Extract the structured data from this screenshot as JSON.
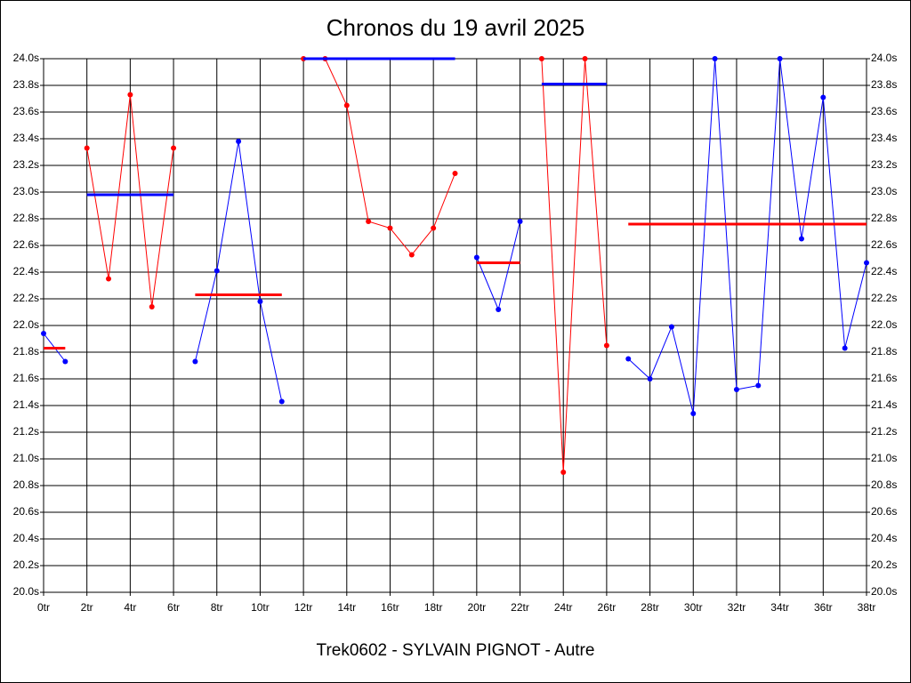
{
  "chart_data": {
    "type": "segmented-line",
    "title": "Chronos du 19 avril 2025",
    "x_label": "Trek0602 - SYLVAIN PIGNOT - Autre",
    "xlim": [
      0,
      38
    ],
    "ylim": [
      20.0,
      24.0
    ],
    "grid": true,
    "xticks": [
      {
        "value": 0,
        "label": "0tr"
      },
      {
        "value": 2,
        "label": "2tr"
      },
      {
        "value": 4,
        "label": "4tr"
      },
      {
        "value": 6,
        "label": "6tr"
      },
      {
        "value": 8,
        "label": "8tr"
      },
      {
        "value": 10,
        "label": "10tr"
      },
      {
        "value": 12,
        "label": "12tr"
      },
      {
        "value": 14,
        "label": "14tr"
      },
      {
        "value": 16,
        "label": "16tr"
      },
      {
        "value": 18,
        "label": "18tr"
      },
      {
        "value": 20,
        "label": "20tr"
      },
      {
        "value": 22,
        "label": "22tr"
      },
      {
        "value": 24,
        "label": "24tr"
      },
      {
        "value": 26,
        "label": "26tr"
      },
      {
        "value": 28,
        "label": "28tr"
      },
      {
        "value": 30,
        "label": "30tr"
      },
      {
        "value": 32,
        "label": "32tr"
      },
      {
        "value": 34,
        "label": "34tr"
      },
      {
        "value": 36,
        "label": "36tr"
      },
      {
        "value": 38,
        "label": "38tr"
      }
    ],
    "yticks": [
      {
        "value": 20.0,
        "label": "20.0s"
      },
      {
        "value": 20.2,
        "label": "20.2s"
      },
      {
        "value": 20.4,
        "label": "20.4s"
      },
      {
        "value": 20.6,
        "label": "20.6s"
      },
      {
        "value": 20.8,
        "label": "20.8s"
      },
      {
        "value": 21.0,
        "label": "21.0s"
      },
      {
        "value": 21.2,
        "label": "21.2s"
      },
      {
        "value": 21.4,
        "label": "21.4s"
      },
      {
        "value": 21.6,
        "label": "21.6s"
      },
      {
        "value": 21.8,
        "label": "21.8s"
      },
      {
        "value": 22.0,
        "label": "22.0s"
      },
      {
        "value": 22.2,
        "label": "22.2s"
      },
      {
        "value": 22.4,
        "label": "22.4s"
      },
      {
        "value": 22.6,
        "label": "22.6s"
      },
      {
        "value": 22.8,
        "label": "22.8s"
      },
      {
        "value": 23.0,
        "label": "23.0s"
      },
      {
        "value": 23.2,
        "label": "23.2s"
      },
      {
        "value": 23.4,
        "label": "23.4s"
      },
      {
        "value": 23.6,
        "label": "23.6s"
      },
      {
        "value": 23.8,
        "label": "23.8s"
      },
      {
        "value": 24.0,
        "label": "24.0s"
      }
    ],
    "segments": [
      {
        "color": "#0000ff",
        "mean_color": "#ff0000",
        "x": [
          0,
          1
        ],
        "values": [
          21.94,
          21.73
        ],
        "mean": 21.83
      },
      {
        "color": "#ff0000",
        "mean_color": "#0000ff",
        "x": [
          2,
          3,
          4,
          5,
          6
        ],
        "values": [
          23.33,
          22.35,
          23.73,
          22.14,
          23.33
        ],
        "mean": 22.98
      },
      {
        "color": "#0000ff",
        "mean_color": "#ff0000",
        "x": [
          7,
          8,
          9,
          10,
          11
        ],
        "values": [
          21.73,
          22.41,
          23.38,
          22.18,
          21.43
        ],
        "mean": 22.23
      },
      {
        "color": "#ff0000",
        "mean_color": "#0000ff",
        "x": [
          12,
          13,
          14,
          15,
          16,
          17,
          18,
          19
        ],
        "values": [
          24.0,
          24.0,
          23.65,
          22.78,
          22.73,
          22.53,
          22.73,
          23.14
        ],
        "mean": 24.0
      },
      {
        "color": "#0000ff",
        "mean_color": "#ff0000",
        "x": [
          20,
          21,
          22
        ],
        "values": [
          22.51,
          22.12,
          22.78
        ],
        "mean": 22.47
      },
      {
        "color": "#ff0000",
        "mean_color": "#0000ff",
        "x": [
          23,
          24,
          25,
          26
        ],
        "values": [
          24.0,
          20.9,
          24.0,
          21.85
        ],
        "mean": 23.81
      },
      {
        "color": "#0000ff",
        "mean_color": "#ff0000",
        "x": [
          27,
          28,
          29,
          30,
          31,
          32,
          33,
          34,
          35,
          36,
          37,
          38
        ],
        "values": [
          21.75,
          21.6,
          21.99,
          21.34,
          24.0,
          21.52,
          21.55,
          24.0,
          22.65,
          23.71,
          21.83,
          22.47
        ],
        "mean": 22.76
      }
    ]
  }
}
